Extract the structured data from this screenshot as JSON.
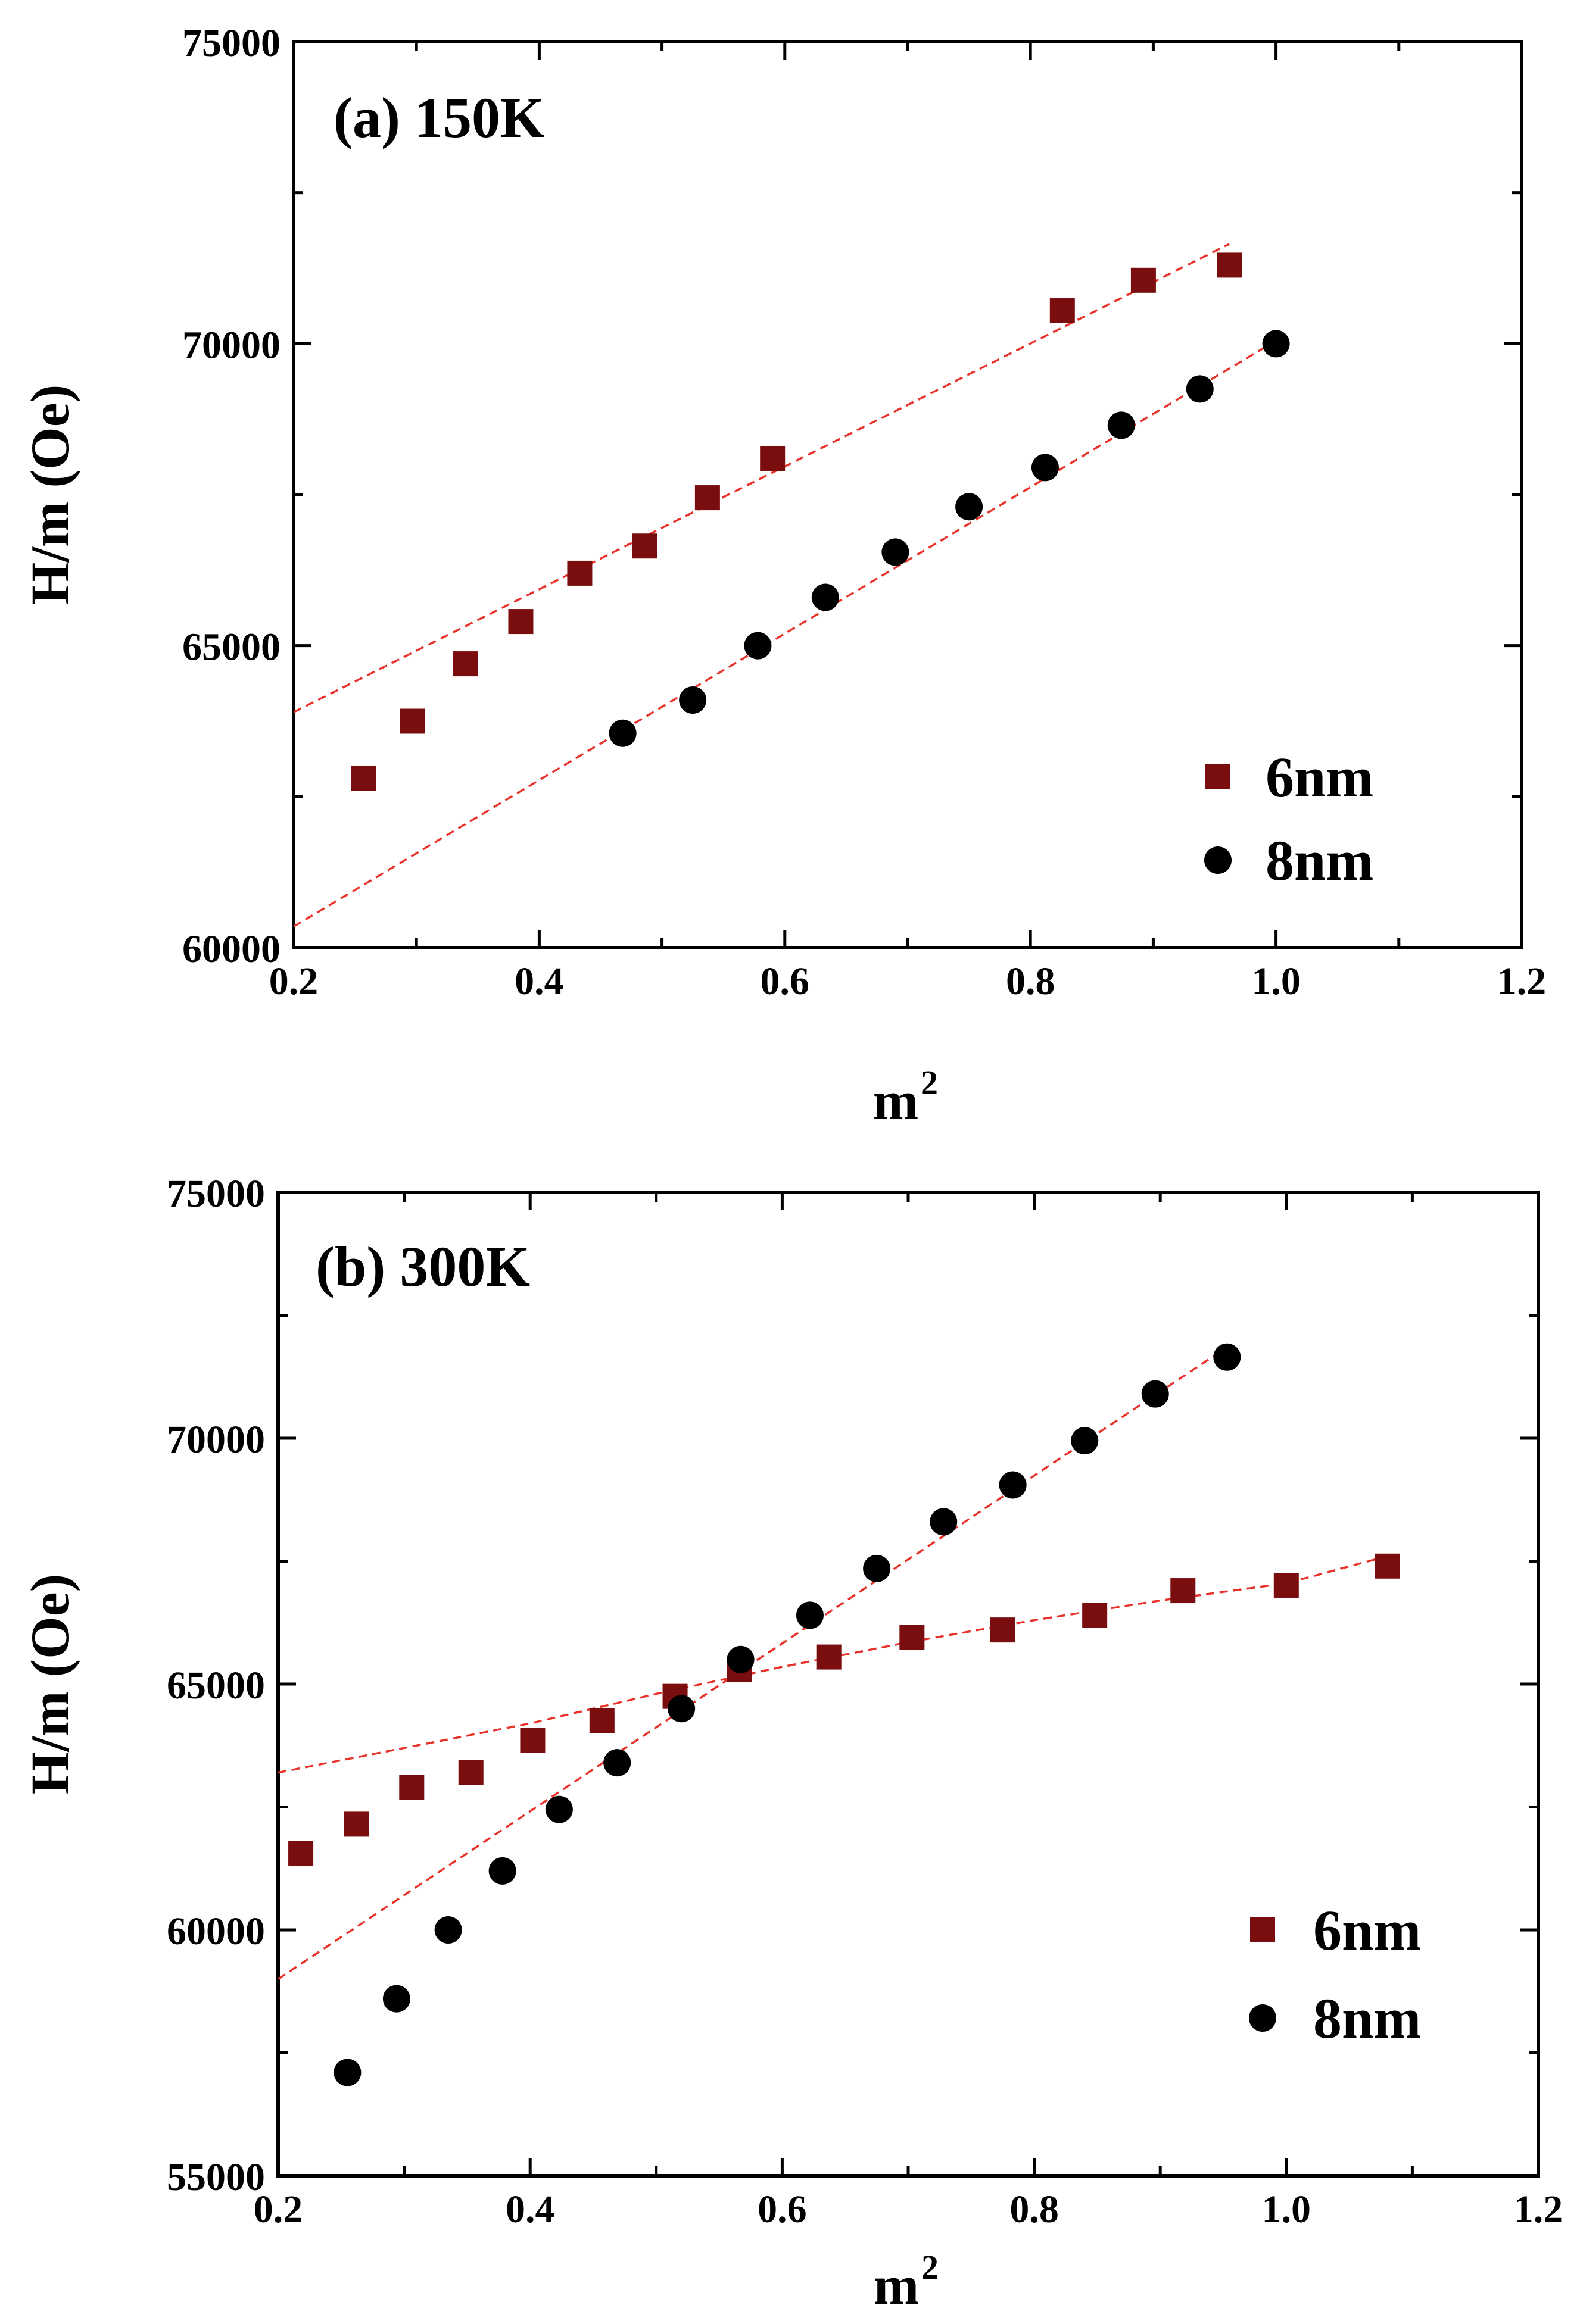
{
  "colors": {
    "series_6nm": "#7a0d0d",
    "series_8nm": "#000000",
    "fit_line": "#e8332a"
  },
  "chart_data": [
    {
      "type": "scatter",
      "title": "(a) 150K",
      "xlabel": "m",
      "xlabel_superscript": "2",
      "ylabel": "H/m (Oe)",
      "xlim": [
        0.2,
        1.2
      ],
      "ylim": [
        60000,
        75000
      ],
      "xticks": [
        0.2,
        0.4,
        0.6,
        0.8,
        1.0,
        1.2
      ],
      "xtick_labels": [
        "0.2",
        "0.4",
        "0.6",
        "0.8",
        "1.0",
        "1.2"
      ],
      "yticks": [
        60000,
        65000,
        70000,
        75000
      ],
      "ytick_labels": [
        "60000",
        "65000",
        "70000",
        "75000"
      ],
      "legend_position": "bottom-right",
      "series": [
        {
          "name": "6nm",
          "marker": "square",
          "x": [
            0.257,
            0.297,
            0.34,
            0.385,
            0.433,
            0.486,
            0.537,
            0.59,
            0.826,
            0.892,
            0.962
          ],
          "y": [
            62800,
            63750,
            64700,
            65400,
            66200,
            66650,
            67450,
            68100,
            70550,
            71050,
            71300
          ],
          "fit": {
            "x": [
              0.2,
              0.962
            ],
            "y": [
              63900,
              71650
            ]
          }
        },
        {
          "name": "8nm",
          "marker": "circle",
          "x": [
            0.468,
            0.525,
            0.578,
            0.633,
            0.69,
            0.75,
            0.812,
            0.874,
            0.938,
            1.0
          ],
          "y": [
            63550,
            64100,
            65000,
            65800,
            66550,
            67300,
            67950,
            68650,
            69250,
            70000
          ],
          "fit": {
            "x": [
              0.2,
              1.0
            ],
            "y": [
              60350,
              70050
            ]
          }
        }
      ]
    },
    {
      "type": "scatter",
      "title": "(b) 300K",
      "xlabel": "m",
      "xlabel_superscript": "2",
      "ylabel": "H/m (Oe)",
      "xlim": [
        0.2,
        1.2
      ],
      "ylim": [
        55000,
        75000
      ],
      "xticks": [
        0.2,
        0.4,
        0.6,
        0.8,
        1.0,
        1.2
      ],
      "xtick_labels": [
        "0.2",
        "0.4",
        "0.6",
        "0.8",
        "1.0",
        "1.2"
      ],
      "yticks": [
        55000,
        60000,
        65000,
        70000,
        75000
      ],
      "ytick_labels": [
        "55000",
        "60000",
        "65000",
        "70000",
        "75000"
      ],
      "legend_position": "bottom-right",
      "series": [
        {
          "name": "6nm",
          "marker": "square",
          "x": [
            0.218,
            0.262,
            0.306,
            0.353,
            0.402,
            0.457,
            0.515,
            0.566,
            0.637,
            0.703,
            0.775,
            0.848,
            0.918,
            1.0,
            1.08
          ],
          "y": [
            61550,
            62150,
            62900,
            63200,
            63850,
            64250,
            64750,
            65300,
            65550,
            65950,
            66100,
            66400,
            66900,
            67000,
            67400
          ],
          "fit": {
            "x": [
              0.2,
              0.3,
              0.4,
              0.5,
              0.6,
              0.7,
              0.8,
              0.9,
              1.0,
              1.08
            ],
            "y": [
              63200,
              63700,
              64200,
              64800,
              65350,
              65850,
              66300,
              66700,
              67050,
              67600
            ]
          }
        },
        {
          "name": "8nm",
          "marker": "circle",
          "x": [
            0.255,
            0.294,
            0.335,
            0.378,
            0.423,
            0.469,
            0.52,
            0.567,
            0.622,
            0.675,
            0.728,
            0.783,
            0.84,
            0.896,
            0.953
          ],
          "y": [
            57100,
            58600,
            60000,
            61200,
            62450,
            63400,
            64500,
            65500,
            66400,
            67350,
            68300,
            69050,
            69950,
            70900,
            71650
          ],
          "fit": {
            "x": [
              0.2,
              0.95
            ],
            "y": [
              59000,
              71800
            ]
          }
        }
      ]
    }
  ]
}
